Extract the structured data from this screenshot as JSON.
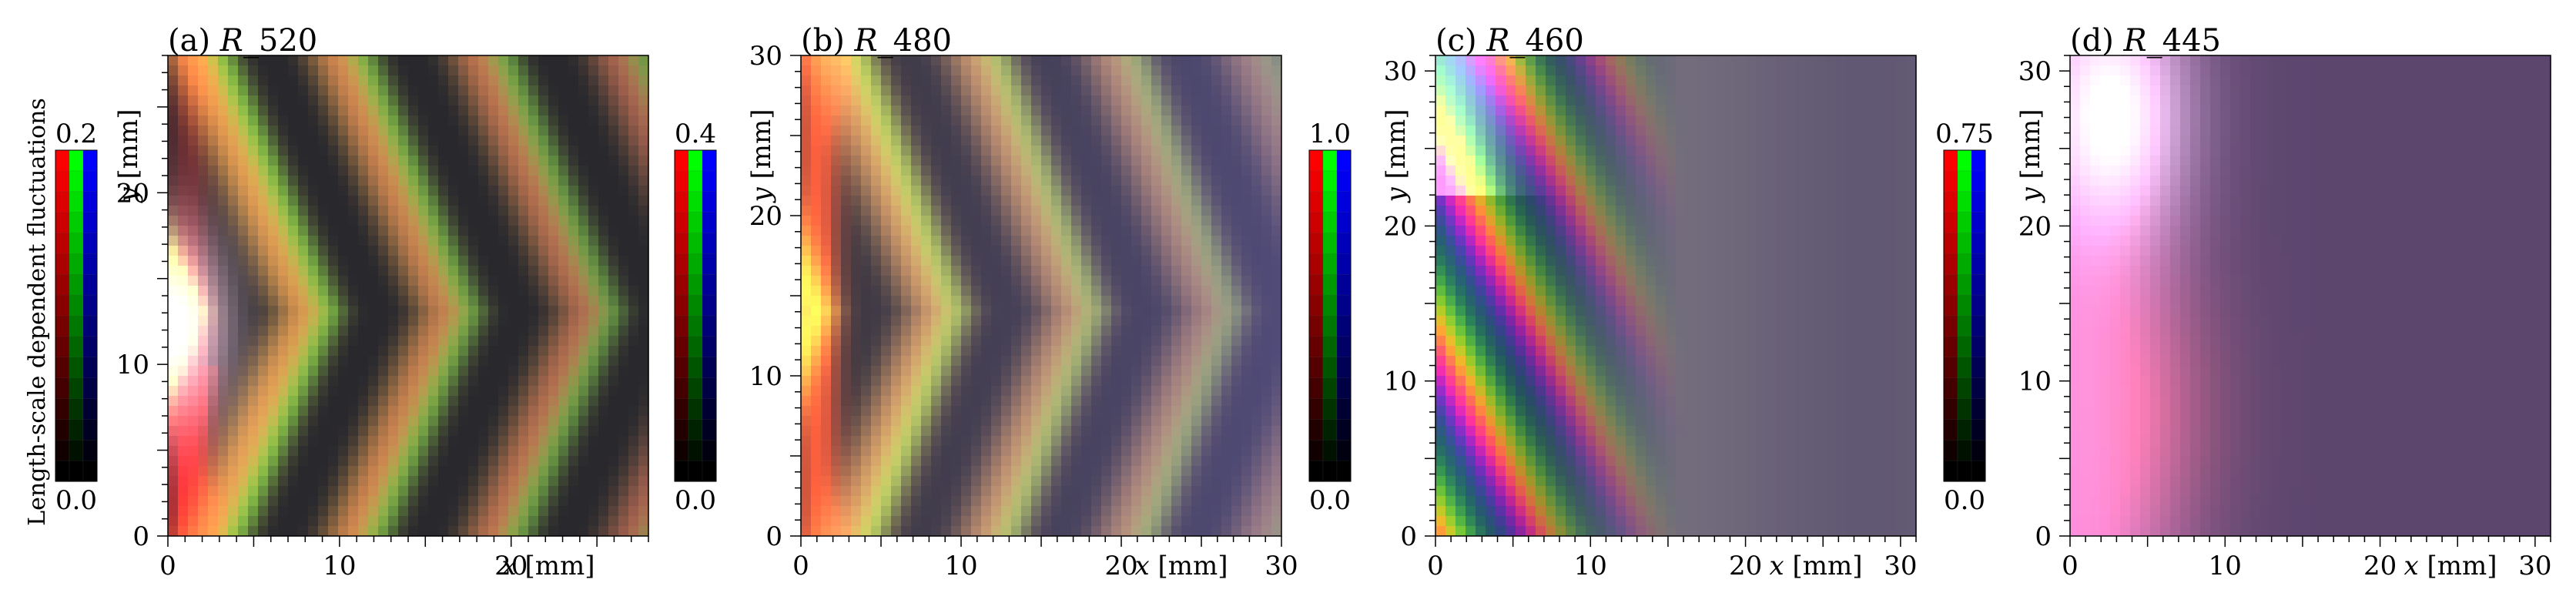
{
  "chart_data": {
    "type": "heatmap",
    "colorbar_label": "Length-scale dependent fluctuations",
    "panels": [
      {
        "id": "a",
        "title_prefix": "(a) ",
        "title_var": "R",
        "title_suffix": "_520",
        "xlabel_var": "x",
        "xlabel_unit": " [mm]",
        "ylabel_var": "y",
        "ylabel_unit": " [mm]",
        "xlim": [
          0,
          28
        ],
        "ylim": [
          0,
          28
        ],
        "xticks": [
          0,
          10,
          20
        ],
        "yticks": [
          0,
          10,
          20
        ],
        "clim": [
          0.0,
          0.2
        ],
        "cbar_min_label": "0.0",
        "cbar_max_label": "0.2",
        "pattern": "chevron",
        "description": "Strong alternating red/yellow and dark chevron bands, wavelength ~8 mm"
      },
      {
        "id": "b",
        "title_prefix": "(b) ",
        "title_var": "R",
        "title_suffix": "_480",
        "xlabel_var": "x",
        "xlabel_unit": " [mm]",
        "ylabel_var": "y",
        "ylabel_unit": " [mm]",
        "xlim": [
          0,
          30
        ],
        "ylim": [
          0,
          30
        ],
        "xticks": [
          0,
          10,
          20,
          30
        ],
        "yticks": [
          0,
          10,
          20,
          30
        ],
        "clim": [
          0.0,
          0.4
        ],
        "cbar_min_label": "0.0",
        "cbar_max_label": "0.4",
        "pattern": "chevron-fading",
        "description": "Chevron bands fading to the right"
      },
      {
        "id": "c",
        "title_prefix": "(c) ",
        "title_var": "R",
        "title_suffix": "_460",
        "xlabel_var": "x",
        "xlabel_unit": " [mm]",
        "ylabel_var": "y",
        "ylabel_unit": " [mm]",
        "xlim": [
          0,
          31
        ],
        "ylim": [
          0,
          31
        ],
        "xticks": [
          0,
          10,
          20,
          30
        ],
        "yticks": [
          0,
          10,
          20,
          30
        ],
        "clim": [
          0.0,
          1.0
        ],
        "cbar_min_label": "0.0",
        "cbar_max_label": "1.0",
        "pattern": "diagonal-rainbow",
        "description": "Bright multicoloured diagonal stripes near the left, diffuse grey-purple to the right"
      },
      {
        "id": "d",
        "title_prefix": "(d) ",
        "title_var": "R",
        "title_suffix": "_445",
        "xlabel_var": "x",
        "xlabel_unit": " [mm]",
        "ylabel_var": "y",
        "ylabel_unit": " [mm]",
        "xlim": [
          0,
          31
        ],
        "ylim": [
          0,
          31
        ],
        "xticks": [
          0,
          10,
          20,
          30
        ],
        "yticks": [
          0,
          10,
          20,
          30
        ],
        "clim": [
          0.0,
          0.75
        ],
        "cbar_min_label": "0.0",
        "cbar_max_label": "0.75",
        "pattern": "diffuse",
        "description": "Pink/white bright region at the left edge, mostly uniform purple elsewhere"
      }
    ],
    "colorbar_channels": [
      "#ff0000",
      "#00ff00",
      "#0000ff"
    ]
  }
}
